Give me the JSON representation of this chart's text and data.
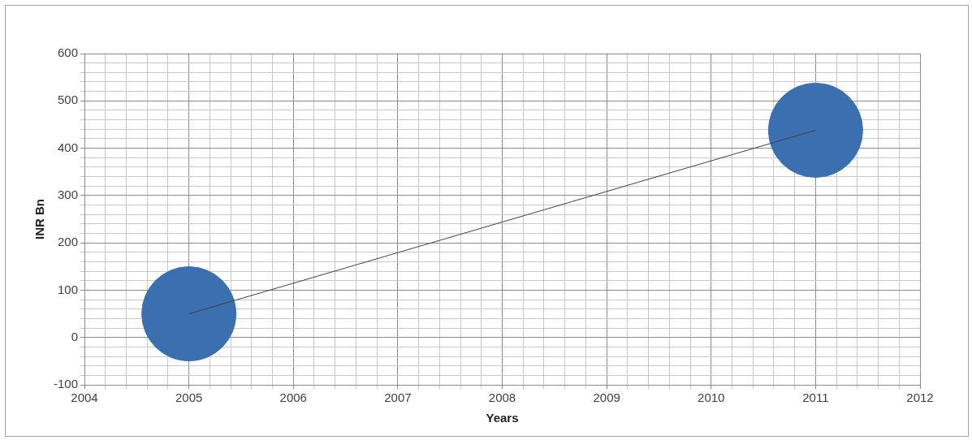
{
  "chart_data": {
    "type": "bubble",
    "xlabel": "Years",
    "ylabel": "INR Bn",
    "x": [
      2005,
      2011
    ],
    "series": [
      {
        "type": "bubble",
        "color": "#3a6fb0",
        "values": [
          50,
          438
        ],
        "sizes": [
          1,
          1
        ]
      },
      {
        "type": "line",
        "color": "#404040",
        "values": [
          50,
          438
        ]
      }
    ],
    "xlim": [
      2004,
      2012
    ],
    "xticks": [
      2004,
      {
        "value": 2004.2,
        "label": null
      },
      {
        "value": 2004.4,
        "label": null
      },
      {
        "value": 2004.6,
        "label": null
      },
      {
        "value": 2004.8,
        "label": null
      },
      2005,
      {
        "value": 2005.2,
        "label": null
      },
      {
        "value": 2005.4,
        "label": null
      },
      {
        "value": 2005.6,
        "label": null
      },
      {
        "value": 2005.8,
        "label": null
      },
      2006,
      {
        "value": 2006.2,
        "label": null
      },
      {
        "value": 2006.4,
        "label": null
      },
      {
        "value": 2006.6,
        "label": null
      },
      {
        "value": 2006.8,
        "label": null
      },
      2007,
      {
        "value": 2007.2,
        "label": null
      },
      {
        "value": 2007.4,
        "label": null
      },
      {
        "value": 2007.6,
        "label": null
      },
      {
        "value": 2007.8,
        "label": null
      },
      2008,
      {
        "value": 2008.2,
        "label": null
      },
      {
        "value": 2008.4,
        "label": null
      },
      {
        "value": 2008.6,
        "label": null
      },
      {
        "value": 2008.8,
        "label": null
      },
      2009,
      {
        "value": 2009.2,
        "label": null
      },
      {
        "value": 2009.4,
        "label": null
      },
      {
        "value": 2009.6,
        "label": null
      },
      {
        "value": 2009.8,
        "label": null
      },
      2010,
      {
        "value": 2010.2,
        "label": null
      },
      {
        "value": 2010.4,
        "label": null
      },
      {
        "value": 2010.6,
        "label": null
      },
      {
        "value": 2010.8,
        "label": null
      },
      2011,
      {
        "value": 2011.2,
        "label": null
      },
      {
        "value": 2011.4,
        "label": null
      },
      {
        "value": 2011.6,
        "label": null
      },
      {
        "value": 2011.8,
        "label": null
      },
      2012
    ],
    "ylim": [
      -100,
      600
    ],
    "yticks": [
      -100,
      {
        "value": -80,
        "label": null
      },
      {
        "value": -60,
        "label": null
      },
      {
        "value": -40,
        "label": null
      },
      {
        "value": -20,
        "label": null
      },
      0,
      {
        "value": 20,
        "label": null
      },
      {
        "value": 40,
        "label": null
      },
      {
        "value": 60,
        "label": null
      },
      {
        "value": 80,
        "label": null
      },
      100,
      {
        "value": 120,
        "label": null
      },
      {
        "value": 140,
        "label": null
      },
      {
        "value": 160,
        "label": null
      },
      {
        "value": 180,
        "label": null
      },
      200,
      {
        "value": 220,
        "label": null
      },
      {
        "value": 240,
        "label": null
      },
      {
        "value": 260,
        "label": null
      },
      {
        "value": 280,
        "label": null
      },
      300,
      {
        "value": 320,
        "label": null
      },
      {
        "value": 340,
        "label": null
      },
      {
        "value": 360,
        "label": null
      },
      {
        "value": 380,
        "label": null
      },
      400,
      {
        "value": 420,
        "label": null
      },
      {
        "value": 440,
        "label": null
      },
      {
        "value": 460,
        "label": null
      },
      {
        "value": 480,
        "label": null
      },
      500,
      {
        "value": 520,
        "label": null
      },
      {
        "value": 540,
        "label": null
      },
      {
        "value": 560,
        "label": null
      },
      {
        "value": 580,
        "label": null
      },
      600
    ],
    "grid": true,
    "legend": false
  }
}
